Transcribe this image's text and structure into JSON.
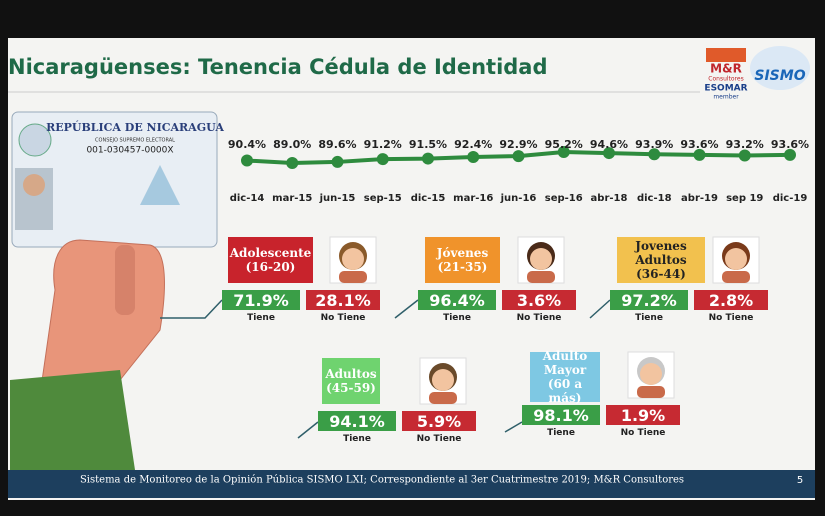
{
  "header": {
    "title": "Nicaragüenses: Tenencia Cédula de Identidad",
    "logo_primary": "M&R",
    "logo_sub": "Consultores",
    "logo_esomar": "ESOMAR",
    "logo_member": "member",
    "logo_sismo": "SISMO"
  },
  "id_card": {
    "country": "REPÚBLICA DE NICARAGUA",
    "issuer": "CONSEJO SUPREMO ELECTORAL",
    "number": "001-030457-0000X"
  },
  "chart_data": {
    "type": "line",
    "categories": [
      "dic-14",
      "mar-15",
      "jun-15",
      "sep-15",
      "dic-15",
      "mar-16",
      "jun-16",
      "sep-16",
      "abr-18",
      "dic-18",
      "abr-19",
      "sep 19",
      "dic-19"
    ],
    "values": [
      90.4,
      89.0,
      89.6,
      91.2,
      91.5,
      92.4,
      92.9,
      95.2,
      94.6,
      93.9,
      93.6,
      93.2,
      93.6
    ],
    "value_labels": [
      "90.4%",
      "89.0%",
      "89.6%",
      "91.2%",
      "91.5%",
      "92.4%",
      "92.9%",
      "95.2%",
      "94.6%",
      "93.9%",
      "93.6%",
      "93.2%",
      "93.6%"
    ],
    "color": "#2e8b3e"
  },
  "groups": [
    {
      "label": [
        "Adolescente",
        "(16-20)"
      ],
      "tiene": "71.9%",
      "tiene_label": "Tiene",
      "no_tiene": "28.1%",
      "no_tiene_label": "No Tiene"
    },
    {
      "label": [
        "Jóvenes",
        "(21-35)"
      ],
      "tiene": "96.4%",
      "tiene_label": "Tiene",
      "no_tiene": "3.6%",
      "no_tiene_label": "No Tiene"
    },
    {
      "label": [
        "Jovenes",
        "Adultos",
        "(36-44)"
      ],
      "tiene": "97.2%",
      "tiene_label": "Tiene",
      "no_tiene": "2.8%",
      "no_tiene_label": "No Tiene"
    },
    {
      "label": [
        "Adultos",
        "(45-59)"
      ],
      "tiene": "94.1%",
      "tiene_label": "Tiene",
      "no_tiene": "5.9%",
      "no_tiene_label": "No Tiene"
    },
    {
      "label": [
        "Adulto",
        "Mayor",
        "(60 a más)"
      ],
      "tiene": "98.1%",
      "tiene_label": "Tiene",
      "no_tiene": "1.9%",
      "no_tiene_label": "No Tiene"
    }
  ],
  "footer": {
    "text": "Sistema de Monitoreo de la Opinión Pública SISMO LXI; Correspondiente al 3er Cuatrimestre 2019; M&R Consultores",
    "page": "5"
  }
}
